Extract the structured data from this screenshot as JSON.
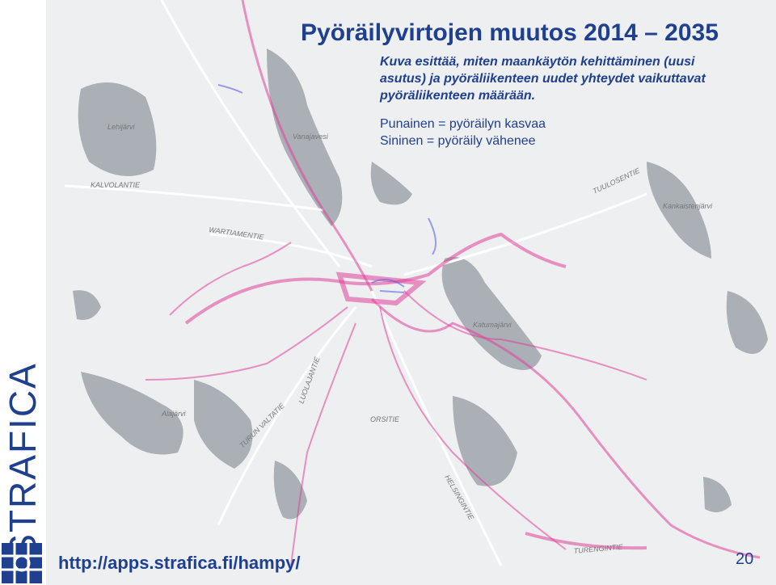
{
  "slide": {
    "title": "Pyöräilyvirtojen muutos 2014 – 2035",
    "description": [
      "Kuva esittää, miten maankäytön kehittäminen (uusi",
      "asutus) ja pyöräliikenteen uudet yhteydet vaikuttavat",
      "pyöräliikenteen määrään."
    ],
    "legend": [
      "Punainen = pyöräilyn kasvaa",
      "Sininen = pyöräily vähenee"
    ],
    "brand": "STRAFICA",
    "url": "http://apps.strafica.fi/hampy/",
    "page_number": "20"
  },
  "map": {
    "labels": [
      "Lehijärvi",
      "Vanajavesi",
      "KALVOLANTIE",
      "WARTIAMENTIE",
      "TUULOSENTIE",
      "Kankaistenjärvi",
      "Katumajärvi",
      "Alajärvi",
      "TURUN VALTATIE",
      "LUOLAJANTIE",
      "ORSITIE",
      "HELSINGINTIE",
      "TURENGINTIE"
    ]
  }
}
